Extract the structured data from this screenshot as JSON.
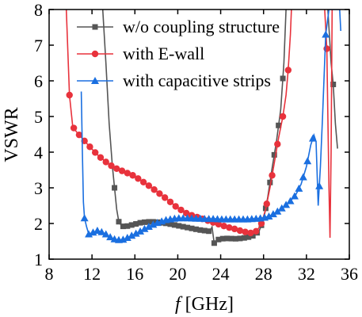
{
  "chart_data": {
    "type": "line",
    "xlabel_italic": "f",
    "xlabel_rest": " [GHz]",
    "ylabel": "VSWR",
    "xlim": [
      8,
      36
    ],
    "ylim": [
      1,
      8
    ],
    "xticks": [
      8,
      12,
      16,
      20,
      24,
      28,
      32,
      36
    ],
    "yticks": [
      1,
      2,
      3,
      4,
      5,
      6,
      7,
      8
    ],
    "grid": false,
    "legend_position": "top-right",
    "series": [
      {
        "name": "w/o coupling structure",
        "color": "#555555",
        "marker": "square",
        "points": [
          [
            13.0,
            8.0
          ],
          [
            13.3,
            6.5
          ],
          [
            13.6,
            4.8
          ],
          [
            13.9,
            3.6
          ],
          [
            14.1,
            3.0
          ],
          [
            14.3,
            2.4
          ],
          [
            14.5,
            2.05
          ],
          [
            14.8,
            1.92
          ],
          [
            15.2,
            1.92
          ],
          [
            15.6,
            1.95
          ],
          [
            16.0,
            1.98
          ],
          [
            16.5,
            2.02
          ],
          [
            17.0,
            2.04
          ],
          [
            17.5,
            2.05
          ],
          [
            18.0,
            2.04
          ],
          [
            18.5,
            2.02
          ],
          [
            19.0,
            2.0
          ],
          [
            19.5,
            1.97
          ],
          [
            20.0,
            1.94
          ],
          [
            20.5,
            1.91
          ],
          [
            21.0,
            1.88
          ],
          [
            21.5,
            1.85
          ],
          [
            22.0,
            1.82
          ],
          [
            22.5,
            1.8
          ],
          [
            23.0,
            1.78
          ],
          [
            23.2,
            1.9
          ],
          [
            23.4,
            1.45
          ],
          [
            23.8,
            1.55
          ],
          [
            24.3,
            1.58
          ],
          [
            24.8,
            1.58
          ],
          [
            25.3,
            1.57
          ],
          [
            25.8,
            1.58
          ],
          [
            26.3,
            1.6
          ],
          [
            26.8,
            1.63
          ],
          [
            27.2,
            1.68
          ],
          [
            27.6,
            1.8
          ],
          [
            28.0,
            2.1
          ],
          [
            28.4,
            2.75
          ],
          [
            28.8,
            3.55
          ],
          [
            29.2,
            4.3
          ],
          [
            29.6,
            5.2
          ],
          [
            29.9,
            6.5
          ],
          [
            30.1,
            8.0
          ],
          [
            34.0,
            8.0
          ],
          [
            34.3,
            6.5
          ],
          [
            34.5,
            5.9
          ],
          [
            34.7,
            4.8
          ],
          [
            34.9,
            4.1
          ]
        ],
        "marked_x": [
          14.1,
          14.5,
          14.9,
          15.3,
          15.7,
          16.1,
          16.5,
          16.9,
          17.3,
          17.7,
          18.1,
          18.5,
          18.9,
          19.3,
          19.7,
          20.1,
          20.5,
          20.9,
          21.3,
          21.7,
          22.1,
          22.5,
          22.9,
          23.4,
          23.8,
          24.2,
          24.6,
          25.0,
          25.4,
          25.8,
          26.2,
          26.6,
          27.0,
          27.4,
          27.8,
          28.2,
          28.6,
          29.0,
          29.4,
          29.8,
          34.5
        ]
      },
      {
        "name": "with E-wall",
        "color": "#e8323c",
        "marker": "circle",
        "points": [
          [
            9.6,
            8.0
          ],
          [
            9.75,
            6.8
          ],
          [
            9.9,
            5.6
          ],
          [
            10.2,
            4.72
          ],
          [
            10.6,
            4.55
          ],
          [
            11.0,
            4.42
          ],
          [
            11.4,
            4.28
          ],
          [
            11.8,
            4.15
          ],
          [
            12.2,
            4.02
          ],
          [
            12.6,
            3.9
          ],
          [
            13.0,
            3.8
          ],
          [
            13.4,
            3.7
          ],
          [
            13.8,
            3.62
          ],
          [
            14.2,
            3.55
          ],
          [
            14.6,
            3.5
          ],
          [
            15.0,
            3.45
          ],
          [
            15.4,
            3.4
          ],
          [
            15.8,
            3.35
          ],
          [
            16.2,
            3.28
          ],
          [
            16.6,
            3.2
          ],
          [
            17.0,
            3.12
          ],
          [
            17.4,
            3.04
          ],
          [
            17.8,
            2.95
          ],
          [
            18.2,
            2.86
          ],
          [
            18.6,
            2.77
          ],
          [
            19.0,
            2.68
          ],
          [
            19.4,
            2.58
          ],
          [
            19.8,
            2.48
          ],
          [
            20.2,
            2.4
          ],
          [
            20.6,
            2.32
          ],
          [
            21.0,
            2.26
          ],
          [
            21.4,
            2.22
          ],
          [
            21.8,
            2.18
          ],
          [
            22.2,
            2.14
          ],
          [
            22.6,
            2.1
          ],
          [
            23.0,
            2.06
          ],
          [
            23.4,
            2.02
          ],
          [
            23.8,
            1.98
          ],
          [
            24.2,
            1.94
          ],
          [
            24.6,
            1.9
          ],
          [
            25.0,
            1.87
          ],
          [
            25.4,
            1.84
          ],
          [
            25.8,
            1.8
          ],
          [
            26.2,
            1.77
          ],
          [
            26.6,
            1.74
          ],
          [
            27.0,
            1.73
          ],
          [
            27.4,
            1.8
          ],
          [
            27.8,
            2.0
          ],
          [
            28.2,
            2.4
          ],
          [
            28.6,
            3.0
          ],
          [
            29.0,
            3.7
          ],
          [
            29.4,
            4.4
          ],
          [
            29.8,
            5.0
          ],
          [
            30.1,
            5.6
          ],
          [
            30.3,
            6.3
          ],
          [
            30.5,
            7.3
          ],
          [
            30.6,
            8.0
          ],
          [
            33.7,
            8.0
          ],
          [
            33.9,
            6.9
          ],
          [
            34.0,
            5.0
          ],
          [
            34.1,
            3.0
          ],
          [
            34.2,
            1.6
          ],
          [
            34.3,
            4.0
          ],
          [
            34.4,
            8.0
          ]
        ],
        "marked_x": [
          9.9,
          10.3,
          10.8,
          11.3,
          11.8,
          12.3,
          12.8,
          13.3,
          13.8,
          14.3,
          14.8,
          15.3,
          15.8,
          16.3,
          16.8,
          17.3,
          17.8,
          18.3,
          18.8,
          19.3,
          19.8,
          20.3,
          20.8,
          21.3,
          21.8,
          22.3,
          22.8,
          23.3,
          23.8,
          24.3,
          24.8,
          25.3,
          25.8,
          26.3,
          26.8,
          27.3,
          27.8,
          28.3,
          28.8,
          29.3,
          29.8,
          30.3,
          33.9
        ]
      },
      {
        "name": "with capacitive strips",
        "color": "#1a6fe0",
        "marker": "triangle",
        "points": [
          [
            11.0,
            5.7
          ],
          [
            11.1,
            4.0
          ],
          [
            11.2,
            2.6
          ],
          [
            11.3,
            2.15
          ],
          [
            11.5,
            1.9
          ],
          [
            11.7,
            1.7
          ],
          [
            12.1,
            1.75
          ],
          [
            12.5,
            1.8
          ],
          [
            12.9,
            1.76
          ],
          [
            13.3,
            1.7
          ],
          [
            13.7,
            1.62
          ],
          [
            14.1,
            1.56
          ],
          [
            14.5,
            1.54
          ],
          [
            14.9,
            1.55
          ],
          [
            15.3,
            1.6
          ],
          [
            15.7,
            1.66
          ],
          [
            16.1,
            1.72
          ],
          [
            16.5,
            1.78
          ],
          [
            16.9,
            1.85
          ],
          [
            17.3,
            1.91
          ],
          [
            17.7,
            1.97
          ],
          [
            18.1,
            2.02
          ],
          [
            18.5,
            2.06
          ],
          [
            18.9,
            2.1
          ],
          [
            19.3,
            2.12
          ],
          [
            19.7,
            2.14
          ],
          [
            20.1,
            2.15
          ],
          [
            20.5,
            2.15
          ],
          [
            21.0,
            2.15
          ],
          [
            21.5,
            2.14
          ],
          [
            22.0,
            2.14
          ],
          [
            22.5,
            2.13
          ],
          [
            23.0,
            2.13
          ],
          [
            23.5,
            2.13
          ],
          [
            24.0,
            2.12
          ],
          [
            24.5,
            2.12
          ],
          [
            25.0,
            2.12
          ],
          [
            25.5,
            2.12
          ],
          [
            26.0,
            2.12
          ],
          [
            26.5,
            2.12
          ],
          [
            27.0,
            2.13
          ],
          [
            27.5,
            2.14
          ],
          [
            28.0,
            2.16
          ],
          [
            28.5,
            2.2
          ],
          [
            29.0,
            2.28
          ],
          [
            29.5,
            2.38
          ],
          [
            30.0,
            2.5
          ],
          [
            30.5,
            2.63
          ],
          [
            31.0,
            2.8
          ],
          [
            31.5,
            3.1
          ],
          [
            32.0,
            3.6
          ],
          [
            32.4,
            4.2
          ],
          [
            32.7,
            4.48
          ],
          [
            32.9,
            4.3
          ],
          [
            33.1,
            2.5
          ],
          [
            33.3,
            3.6
          ],
          [
            33.5,
            5.0
          ],
          [
            33.8,
            7.3
          ],
          [
            34.1,
            8.0
          ],
          [
            35.1,
            8.0
          ],
          [
            35.2,
            7.4
          ]
        ],
        "marked_x": [
          11.3,
          11.7,
          12.1,
          12.5,
          12.9,
          13.3,
          13.7,
          14.1,
          14.5,
          14.9,
          15.3,
          15.7,
          16.1,
          16.5,
          16.9,
          17.3,
          17.7,
          18.1,
          18.5,
          18.9,
          19.3,
          19.7,
          20.1,
          20.5,
          20.9,
          21.3,
          21.7,
          22.1,
          22.5,
          22.9,
          23.3,
          23.7,
          24.1,
          24.5,
          24.9,
          25.3,
          25.7,
          26.1,
          26.5,
          26.9,
          27.3,
          27.7,
          28.1,
          28.5,
          28.9,
          29.3,
          29.7,
          30.1,
          30.5,
          30.9,
          31.3,
          31.7,
          32.1,
          32.6,
          33.2,
          33.8
        ]
      }
    ]
  }
}
